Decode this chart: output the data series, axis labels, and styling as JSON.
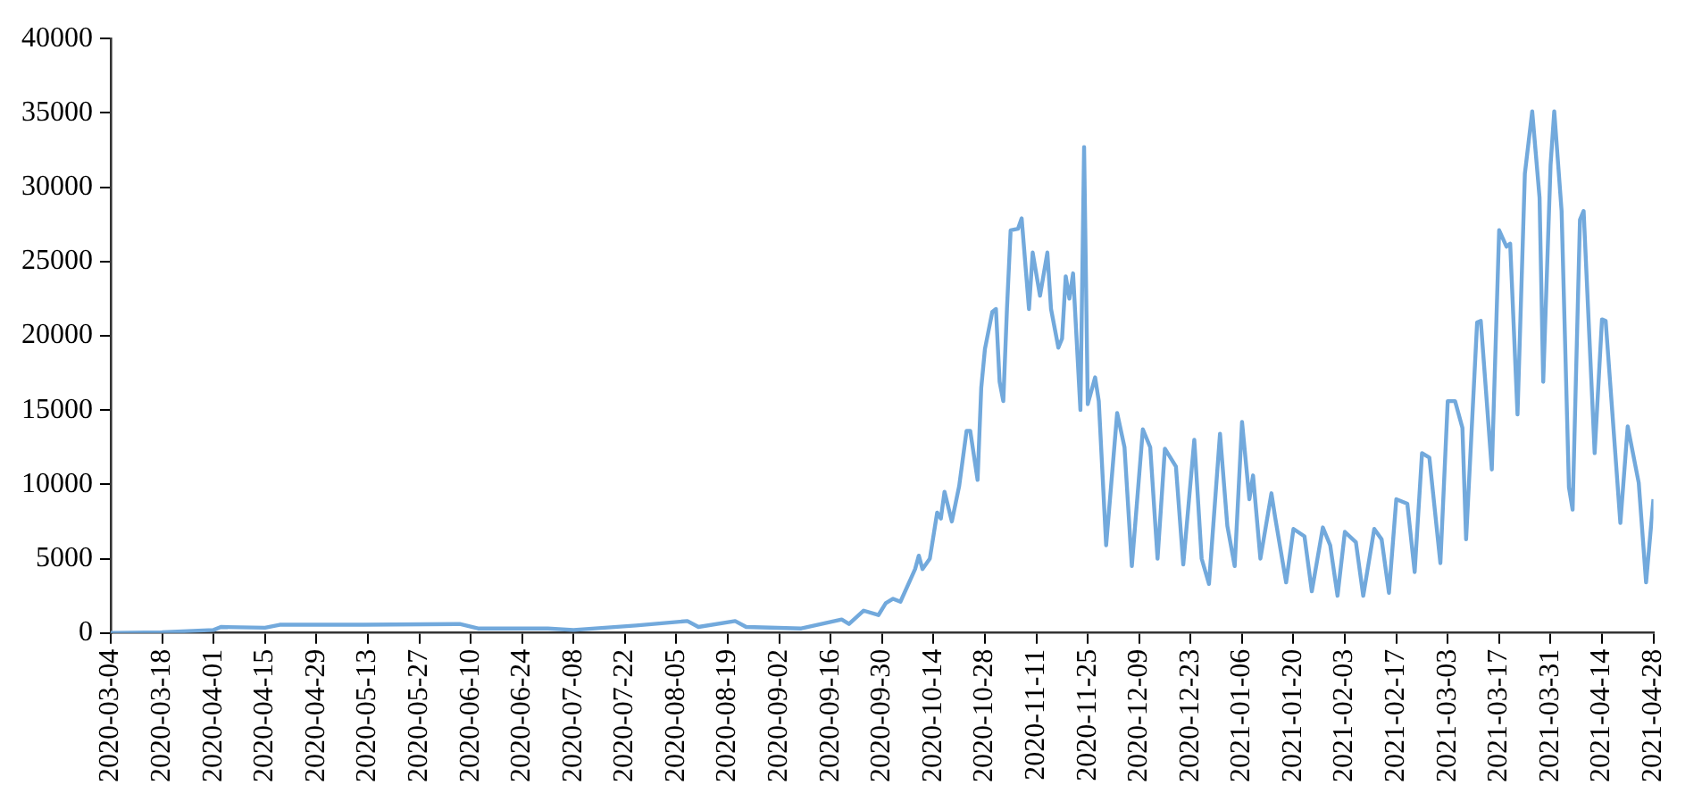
{
  "chart_data": {
    "type": "line",
    "x": [
      "2020-03-04",
      "2020-03-18",
      "2020-04-01",
      "2020-04-03",
      "2020-04-15",
      "2020-04-19",
      "2020-05-12",
      "2020-06-07",
      "2020-06-12",
      "2020-07-01",
      "2020-07-08",
      "2020-07-25",
      "2020-08-08",
      "2020-08-11",
      "2020-08-21",
      "2020-08-24",
      "2020-09-08",
      "2020-09-19",
      "2020-09-21",
      "2020-09-25",
      "2020-09-29",
      "2020-10-01",
      "2020-10-03",
      "2020-10-05",
      "2020-10-09",
      "2020-10-10",
      "2020-10-11",
      "2020-10-13",
      "2020-10-15",
      "2020-10-16",
      "2020-10-17",
      "2020-10-19",
      "2020-10-21",
      "2020-10-23",
      "2020-10-24",
      "2020-10-26",
      "2020-10-27",
      "2020-10-28",
      "2020-10-30",
      "2020-10-31",
      "2020-11-01",
      "2020-11-02",
      "2020-11-03",
      "2020-11-04",
      "2020-11-06",
      "2020-11-07",
      "2020-11-09",
      "2020-11-10",
      "2020-11-12",
      "2020-11-14",
      "2020-11-15",
      "2020-11-17",
      "2020-11-18",
      "2020-11-19",
      "2020-11-20",
      "2020-11-21",
      "2020-11-23",
      "2020-11-24",
      "2020-11-25",
      "2020-11-27",
      "2020-11-28",
      "2020-11-30",
      "2020-12-03",
      "2020-12-05",
      "2020-12-07",
      "2020-12-10",
      "2020-12-12",
      "2020-12-14",
      "2020-12-16",
      "2020-12-19",
      "2020-12-21",
      "2020-12-24",
      "2020-12-26",
      "2020-12-28",
      "2020-12-31",
      "2021-01-02",
      "2021-01-04",
      "2021-01-06",
      "2021-01-08",
      "2021-01-09",
      "2021-01-11",
      "2021-01-14",
      "2021-01-15",
      "2021-01-18",
      "2021-01-20",
      "2021-01-23",
      "2021-01-25",
      "2021-01-28",
      "2021-01-30",
      "2021-02-01",
      "2021-02-03",
      "2021-02-06",
      "2021-02-08",
      "2021-02-11",
      "2021-02-13",
      "2021-02-15",
      "2021-02-17",
      "2021-02-20",
      "2021-02-22",
      "2021-02-24",
      "2021-02-26",
      "2021-03-01",
      "2021-03-03",
      "2021-03-05",
      "2021-03-07",
      "2021-03-08",
      "2021-03-11",
      "2021-03-12",
      "2021-03-15",
      "2021-03-17",
      "2021-03-19",
      "2021-03-20",
      "2021-03-22",
      "2021-03-24",
      "2021-03-26",
      "2021-03-28",
      "2021-03-29",
      "2021-03-31",
      "2021-04-01",
      "2021-04-03",
      "2021-04-05",
      "2021-04-06",
      "2021-04-08",
      "2021-04-09",
      "2021-04-12",
      "2021-04-14",
      "2021-04-15",
      "2021-04-19",
      "2021-04-21",
      "2021-04-24",
      "2021-04-26",
      "2021-04-28"
    ],
    "series": [
      {
        "color": "#72a9dc",
        "values": [
          0,
          50,
          200,
          400,
          350,
          550,
          550,
          600,
          300,
          300,
          200,
          500,
          800,
          400,
          800,
          400,
          300,
          900,
          600,
          1500,
          1200,
          2000,
          2300,
          2100,
          4300,
          5200,
          4300,
          5000,
          8100,
          7700,
          9500,
          7500,
          9900,
          13600,
          13600,
          10300,
          16500,
          19100,
          21600,
          21800,
          16900,
          15600,
          21800,
          27100,
          27200,
          27900,
          21800,
          25600,
          22700,
          25600,
          21800,
          19200,
          19800,
          24000,
          22500,
          24200,
          15000,
          32700,
          15400,
          17200,
          15600,
          5900,
          14800,
          12500,
          4500,
          13700,
          12500,
          5000,
          12400,
          11200,
          4600,
          13000,
          5000,
          3300,
          13400,
          7200,
          4500,
          14200,
          9000,
          10600,
          5000,
          9400,
          7800,
          3400,
          7000,
          6500,
          2800,
          7100,
          5900,
          2500,
          6800,
          6100,
          2500,
          7000,
          6300,
          2700,
          9000,
          8700,
          4100,
          12100,
          11800,
          4700,
          15600,
          15600,
          13800,
          6300,
          20900,
          21000,
          11000,
          27100,
          26000,
          26200,
          14700,
          30900,
          35100,
          29300,
          16900,
          31500,
          35100,
          28400,
          9800,
          8300,
          27800,
          28400,
          12100,
          21100,
          21000,
          7400,
          13900,
          10100,
          3400,
          9000
        ]
      }
    ],
    "xlim": [
      "2020-03-04",
      "2021-04-28"
    ],
    "xticks": [
      "2020-03-04",
      "2020-03-18",
      "2020-04-01",
      "2020-04-15",
      "2020-04-29",
      "2020-05-13",
      "2020-05-27",
      "2020-06-10",
      "2020-06-24",
      "2020-07-08",
      "2020-07-22",
      "2020-08-05",
      "2020-08-19",
      "2020-09-02",
      "2020-09-16",
      "2020-09-30",
      "2020-10-14",
      "2020-10-28",
      "2020-11-11",
      "2020-11-25",
      "2020-12-09",
      "2020-12-23",
      "2021-01-06",
      "2021-01-20",
      "2021-02-03",
      "2021-02-17",
      "2021-03-03",
      "2021-03-17",
      "2021-03-31",
      "2021-04-14",
      "2021-04-28"
    ],
    "ylim": [
      0,
      40000
    ],
    "yticks": [
      0,
      5000,
      10000,
      15000,
      20000,
      25000,
      30000,
      35000,
      40000
    ],
    "grid": false,
    "legend": false,
    "marker": "none",
    "line_style": "solid"
  }
}
